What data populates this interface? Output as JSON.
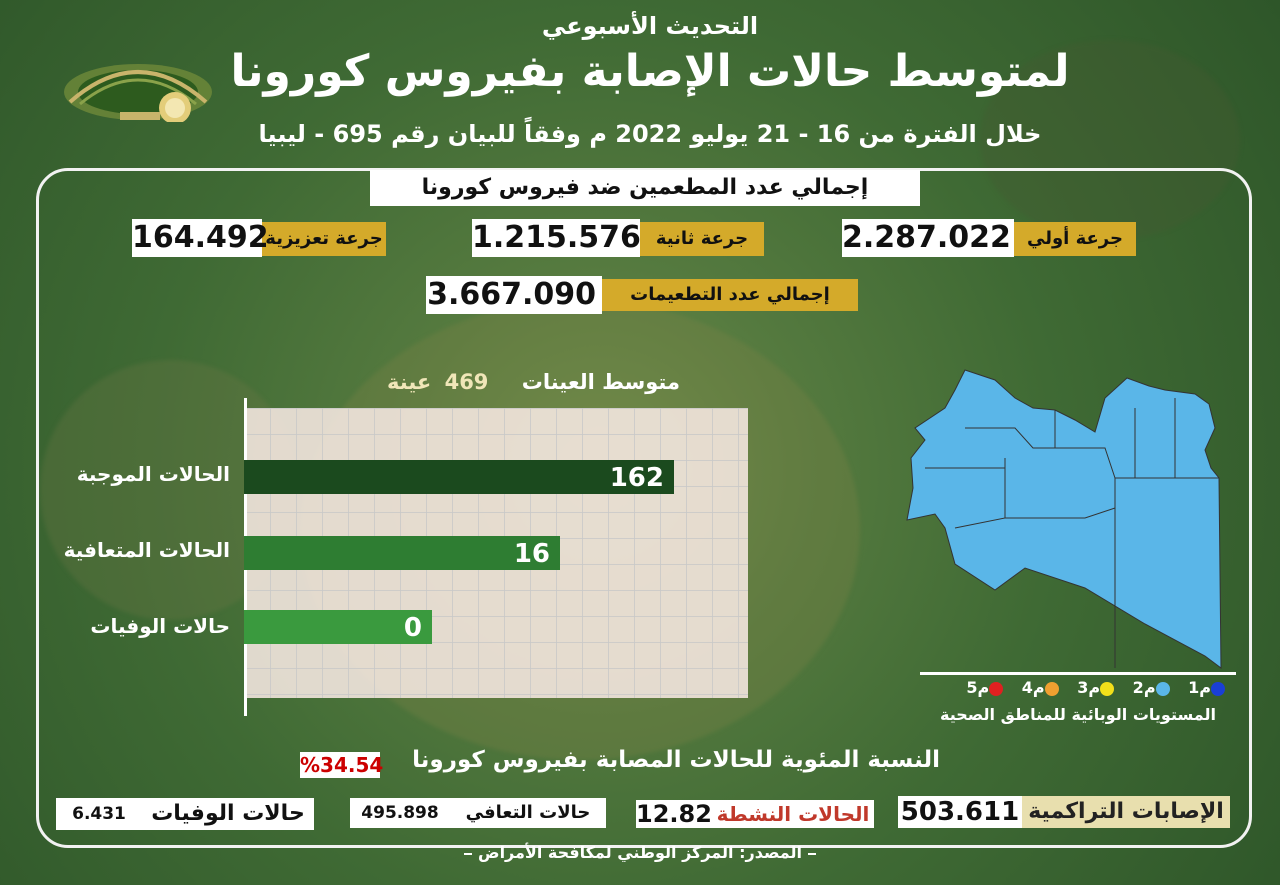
{
  "header": {
    "top_title": "التحديث الأسبوعي",
    "main_title": "لمتوسط حالات الإصابة بفيروس كورونا",
    "subtitle": "خلال الفترة من 16 - 21 يوليو 2022 م وفقاً للبيان رقم 695 - ليبيا"
  },
  "vaccination": {
    "heading": "إجمالي عدد المطعمين ضد فيروس كورونا",
    "first_dose_label": "جرعة أولي",
    "first_dose_value": "2.287.022",
    "second_dose_label": "جرعة ثانية",
    "second_dose_value": "1.215.576",
    "booster_label": "جرعة تعزيزية",
    "booster_value": "164.492",
    "total_label": "إجمالي عدد التطعيمات",
    "total_value": "3.667.090"
  },
  "samples": {
    "label": "متوسط العينات",
    "value": "469",
    "unit": "عينة"
  },
  "chart_data": {
    "type": "bar",
    "categories": [
      "الحالات الموجبة",
      "الحالات المتعافية",
      "حالات الوفيات"
    ],
    "values": [
      162,
      16,
      0
    ],
    "value_labels": [
      "162",
      "16",
      "0"
    ],
    "colors": [
      "#1b4a1e",
      "#2e7d32",
      "#3a9a3e"
    ]
  },
  "map": {
    "fill_color": "#5ab6e8",
    "legend": [
      {
        "label": "م1",
        "color": "#1a3fd6"
      },
      {
        "label": "م2",
        "color": "#5ab6e8"
      },
      {
        "label": "م3",
        "color": "#f2e01a"
      },
      {
        "label": "م4",
        "color": "#f0a030"
      },
      {
        "label": "م5",
        "color": "#e02020"
      }
    ],
    "caption": "المستويات الوبائية للمناطق الصحية"
  },
  "percentage": {
    "text": "النسبة المئوية للحالات المصابة بفيروس كورونا",
    "value": "%34.54"
  },
  "stats": {
    "cumulative_label": "الإصابات التراكمية",
    "cumulative_value": "503.611",
    "active_label": "الحالات النشطة",
    "active_value": "12.82",
    "recovered_label": "حالات التعافي",
    "recovered_value": "495.898",
    "deaths_label": "حالات الوفيات",
    "deaths_value": "6.431"
  },
  "source": "المصدر: المركز الوطني لمكافحة الأمراض"
}
